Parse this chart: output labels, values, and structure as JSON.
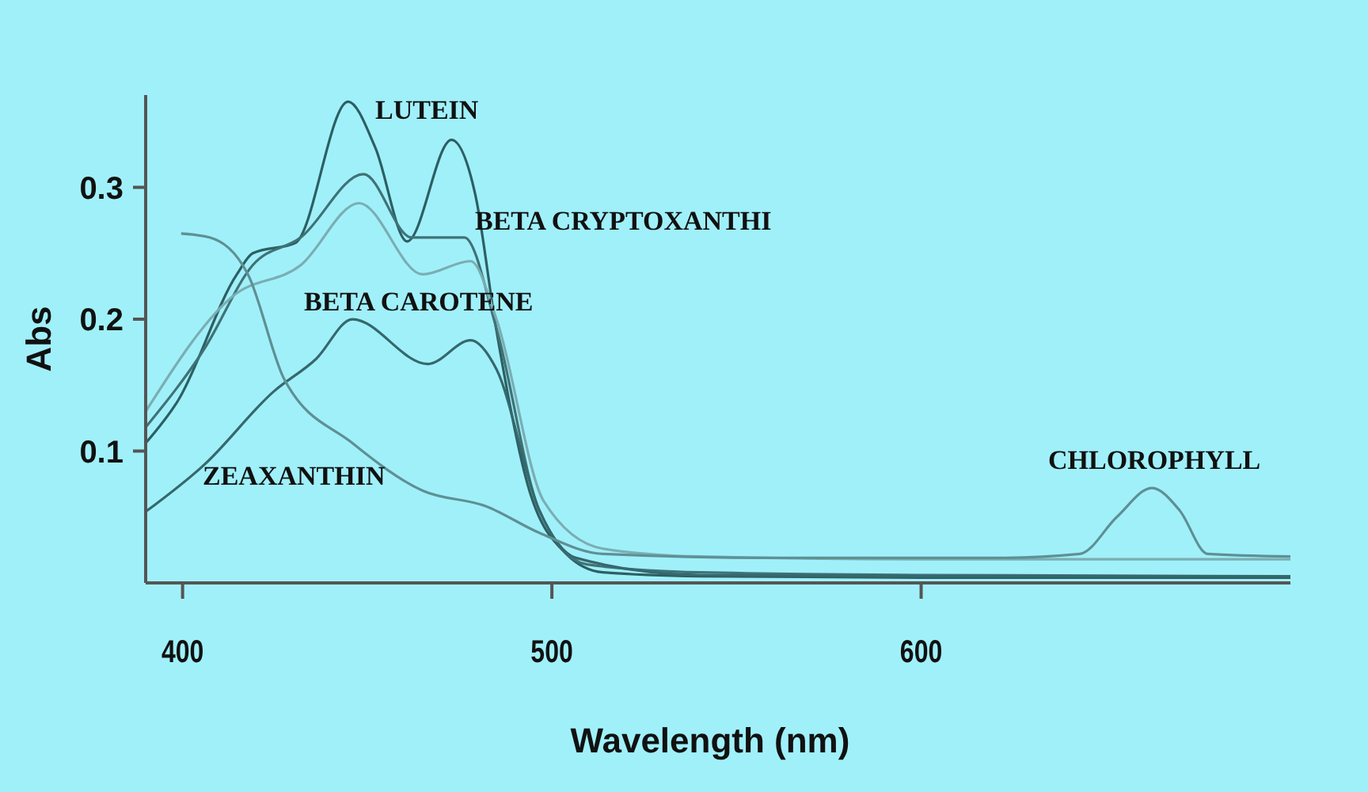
{
  "chart_data": {
    "type": "line",
    "xlabel": "Wavelength (nm)",
    "ylabel": "Abs",
    "xlim": [
      390,
      700
    ],
    "xticks": [
      400,
      500,
      600
    ],
    "ylim": [
      0,
      0.37
    ],
    "yticks": [
      0.1,
      0.2,
      0.3
    ],
    "grid": false,
    "marker": "none",
    "line_style": "solid",
    "series": [
      {
        "color": "#2c5f63",
        "x": [
          390,
          398.7,
          414.7,
          419,
          430.6,
          444.8,
          452.2,
          460.8,
          472.8,
          479.3,
          484.9,
          493.5,
          503.9,
          513.8,
          540,
          600,
          700
        ],
        "values": [
          0.106,
          0.138,
          0.234,
          0.25,
          0.258,
          0.365,
          0.33,
          0.259,
          0.336,
          0.294,
          0.193,
          0.074,
          0.022,
          0.008,
          0.005,
          0.004,
          0.004
        ]
      },
      {
        "color": "#3f7276",
        "x": [
          390,
          406,
          419,
          432,
          449,
          462,
          476.3,
          485,
          496.6,
          509.5,
          540,
          600,
          700
        ],
        "values": [
          0.118,
          0.178,
          0.241,
          0.262,
          0.31,
          0.262,
          0.262,
          0.193,
          0.055,
          0.014,
          0.008,
          0.006,
          0.005
        ]
      },
      {
        "color": "#7aaeb2",
        "x": [
          390,
          413.4,
          432,
          447.8,
          465,
          478,
          485,
          497.8,
          513.8,
          540,
          600,
          700
        ],
        "values": [
          0.13,
          0.217,
          0.241,
          0.288,
          0.234,
          0.244,
          0.2,
          0.062,
          0.026,
          0.02,
          0.018,
          0.018
        ]
      },
      {
        "color": "#35686c",
        "x": [
          390,
          406,
          424.6,
          436.2,
          446,
          466.4,
          478,
          485,
          496.6,
          506.5,
          540,
          600,
          700
        ],
        "values": [
          0.054,
          0.09,
          0.145,
          0.17,
          0.2,
          0.166,
          0.184,
          0.162,
          0.055,
          0.019,
          0.006,
          0.005,
          0.005
        ]
      },
      {
        "color": "#5e9094",
        "x": [
          399.6,
          407.3,
          417.7,
          427.6,
          446,
          465,
          482.3,
          496.6,
          513.8,
          560,
          620,
          643,
          653,
          662.5,
          670,
          677.6,
          700
        ],
        "values": [
          0.265,
          0.262,
          0.234,
          0.154,
          0.106,
          0.07,
          0.058,
          0.038,
          0.022,
          0.019,
          0.019,
          0.022,
          0.05,
          0.072,
          0.055,
          0.022,
          0.02
        ]
      }
    ],
    "annotations": [
      "LUTEIN",
      "BETA CRYPTOXANTHI",
      "BETA CAROTENE",
      "ZEAXANTHIN",
      "CHLOROPHYLL"
    ]
  }
}
